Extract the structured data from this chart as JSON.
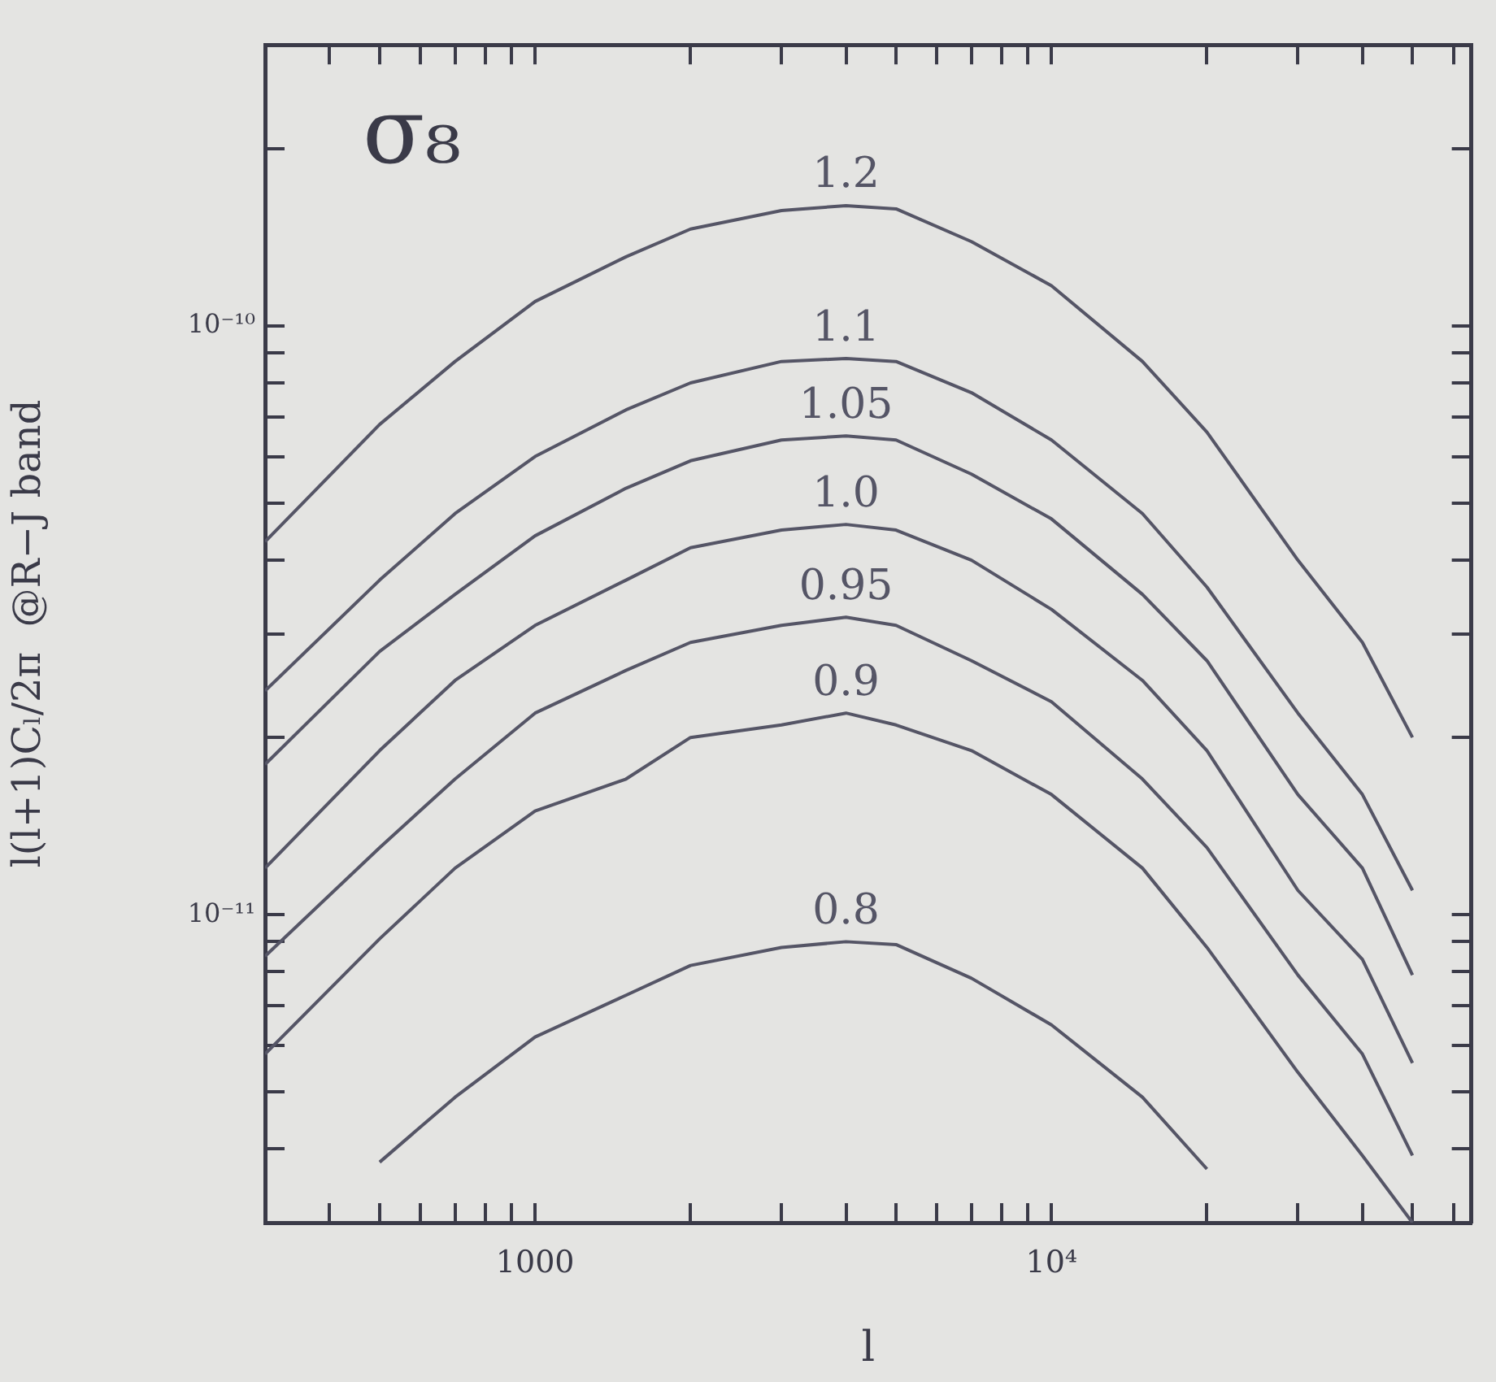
{
  "chart_data": {
    "type": "line",
    "legend_title": "σ₈",
    "xlabel": "l",
    "ylabel": "l(l+1)Cₗ/2π  @R−J band",
    "log": "xy",
    "legend": false,
    "marker": "none",
    "x": [
      300,
      500,
      700,
      1000,
      1500,
      2000,
      3000,
      4000,
      5000,
      7000,
      10000,
      15000,
      20000,
      30000,
      40000,
      50000
    ],
    "xlim": [
      300,
      65000
    ],
    "ylim": [
      3e-12,
      3e-10
    ],
    "xticks": [
      {
        "value": 400,
        "label": null
      },
      {
        "value": 500,
        "label": null
      },
      {
        "value": 600,
        "label": null
      },
      {
        "value": 700,
        "label": null
      },
      {
        "value": 800,
        "label": null
      },
      {
        "value": 900,
        "label": null
      },
      1000,
      {
        "value": 2000,
        "label": null
      },
      {
        "value": 3000,
        "label": null
      },
      {
        "value": 4000,
        "label": null
      },
      {
        "value": 5000,
        "label": null
      },
      {
        "value": 6000,
        "label": null
      },
      {
        "value": 7000,
        "label": null
      },
      {
        "value": 8000,
        "label": null
      },
      {
        "value": 9000,
        "label": null
      },
      {
        "value": 10000,
        "label": "10⁴"
      },
      {
        "value": 20000,
        "label": null
      },
      {
        "value": 30000,
        "label": null
      },
      {
        "value": 40000,
        "label": null
      },
      {
        "value": 50000,
        "label": null
      },
      {
        "value": 60000,
        "label": null
      }
    ],
    "yticks": [
      {
        "value": 4e-12,
        "label": null
      },
      {
        "value": 5e-12,
        "label": null
      },
      {
        "value": 6e-12,
        "label": null
      },
      {
        "value": 7e-12,
        "label": null
      },
      {
        "value": 8e-12,
        "label": null
      },
      {
        "value": 9e-12,
        "label": null
      },
      {
        "value": 1e-11,
        "label": "10⁻¹¹"
      },
      {
        "value": 2e-11,
        "label": null
      },
      {
        "value": 3e-11,
        "label": null
      },
      {
        "value": 4e-11,
        "label": null
      },
      {
        "value": 5e-11,
        "label": null
      },
      {
        "value": 6e-11,
        "label": null
      },
      {
        "value": 7e-11,
        "label": null
      },
      {
        "value": 8e-11,
        "label": null
      },
      {
        "value": 9e-11,
        "label": null
      },
      {
        "value": 1e-10,
        "label": "10⁻¹⁰"
      },
      {
        "value": 2e-10,
        "label": null
      }
    ],
    "series": [
      {
        "name": "1.2",
        "color": "#555566",
        "values": [
          4.3e-11,
          6.8e-11,
          8.7e-11,
          1.1e-10,
          1.31e-10,
          1.46e-10,
          1.57e-10,
          1.6e-10,
          1.58e-10,
          1.39e-10,
          1.17e-10,
          8.7e-11,
          6.6e-11,
          4e-11,
          2.9e-11,
          2e-11
        ]
      },
      {
        "name": "1.1",
        "color": "#555566",
        "values": [
          2.4e-11,
          3.7e-11,
          4.8e-11,
          6e-11,
          7.2e-11,
          8e-11,
          8.7e-11,
          8.8e-11,
          8.7e-11,
          7.7e-11,
          6.4e-11,
          4.8e-11,
          3.6e-11,
          2.2e-11,
          1.6e-11,
          1.1e-11
        ]
      },
      {
        "name": "1.05",
        "color": "#555566",
        "values": [
          1.8e-11,
          2.8e-11,
          3.5e-11,
          4.4e-11,
          5.3e-11,
          5.9e-11,
          6.4e-11,
          6.5e-11,
          6.4e-11,
          5.6e-11,
          4.7e-11,
          3.5e-11,
          2.7e-11,
          1.6e-11,
          1.2e-11,
          7.9e-12
        ]
      },
      {
        "name": "1.0",
        "color": "#555566",
        "values": [
          1.2e-11,
          1.9e-11,
          2.5e-11,
          3.1e-11,
          3.7e-11,
          4.2e-11,
          4.5e-11,
          4.6e-11,
          4.5e-11,
          4e-11,
          3.3e-11,
          2.5e-11,
          1.9e-11,
          1.1e-11,
          8.4e-12,
          5.6e-12
        ]
      },
      {
        "name": "0.95",
        "color": "#555566",
        "values": [
          8.5e-12,
          1.3e-11,
          1.7e-11,
          2.2e-11,
          2.6e-11,
          2.9e-11,
          3.1e-11,
          3.2e-11,
          3.1e-11,
          2.7e-11,
          2.3e-11,
          1.7e-11,
          1.3e-11,
          7.9e-12,
          5.8e-12,
          3.9e-12
        ]
      },
      {
        "name": "0.9",
        "color": "#555566",
        "values": [
          5.8e-12,
          9.1e-12,
          1.2e-11,
          1.5e-11,
          1.7e-11,
          2e-11,
          2.1e-11,
          2.2e-11,
          2.1e-11,
          1.9e-11,
          1.6e-11,
          1.2e-11,
          8.8e-12,
          5.4e-12,
          3.9e-12,
          3e-12
        ]
      },
      {
        "name": "0.8",
        "color": "#555566",
        "values": [
          null,
          3.8e-12,
          4.9e-12,
          6.2e-12,
          7.3e-12,
          8.2e-12,
          8.8e-12,
          9e-12,
          8.9e-12,
          7.8e-12,
          6.5e-12,
          4.9e-12,
          3.7e-12,
          null,
          null,
          null
        ]
      }
    ]
  }
}
